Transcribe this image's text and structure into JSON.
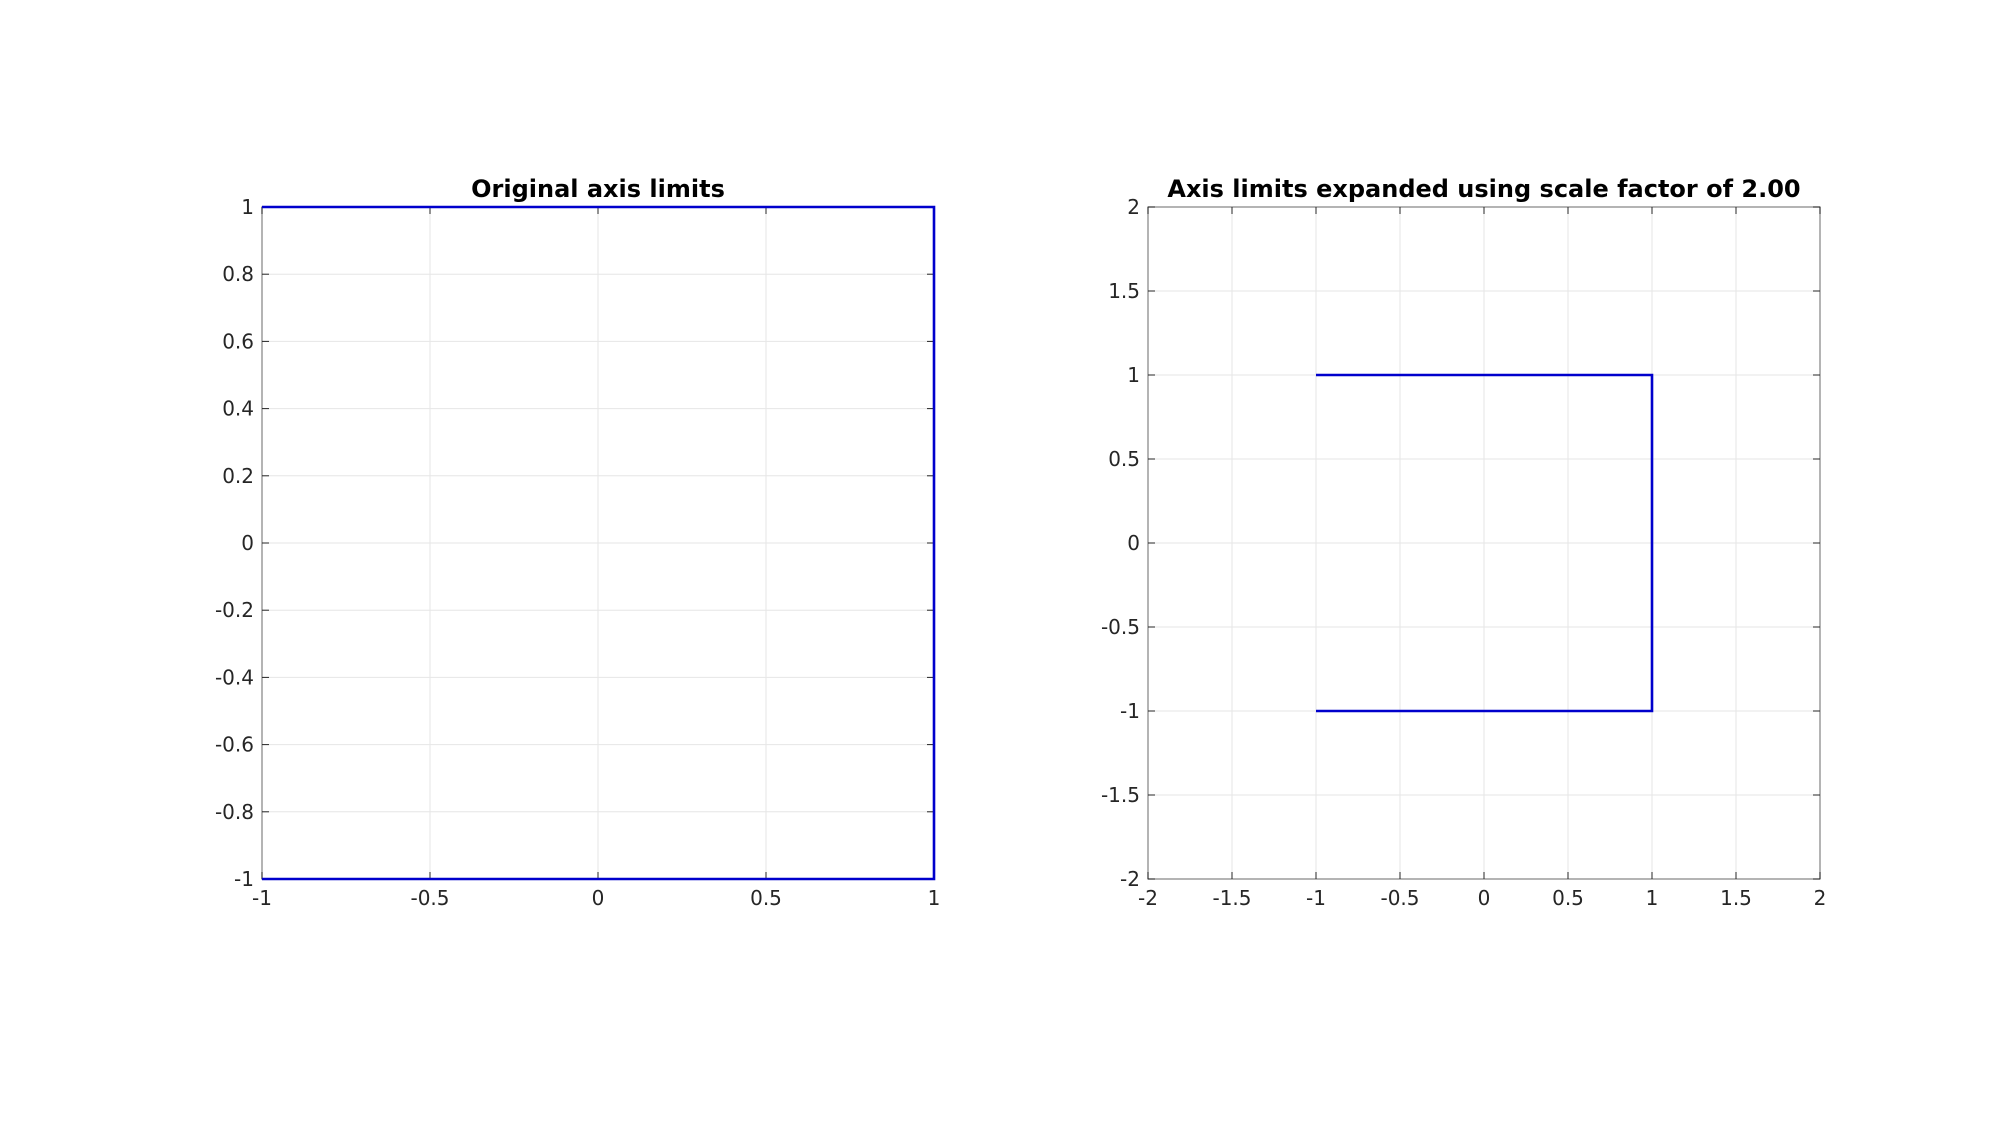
{
  "chart_data": [
    {
      "type": "line",
      "title": "Original axis limits",
      "xlabel": "",
      "ylabel": "",
      "xlim": [
        -1,
        1
      ],
      "ylim": [
        -1,
        1
      ],
      "xticks": [
        -1,
        -0.5,
        0,
        0.5,
        1
      ],
      "xtick_labels": [
        "-1",
        "-0.5",
        "0",
        "0.5",
        "1"
      ],
      "yticks": [
        -1,
        -0.8,
        -0.6,
        -0.4,
        -0.2,
        0,
        0.2,
        0.4,
        0.6,
        0.8,
        1
      ],
      "ytick_labels": [
        "-1",
        "-0.8",
        "-0.6",
        "-0.4",
        "-0.2",
        "0",
        "0.2",
        "0.4",
        "0.6",
        "0.8",
        "1"
      ],
      "grid": true,
      "series": [
        {
          "color": "#0000cc",
          "x": [
            -1,
            1,
            1,
            -1
          ],
          "y": [
            1,
            1,
            -1,
            -1
          ]
        }
      ]
    },
    {
      "type": "line",
      "title": "Axis limits expanded using scale factor of 2.00",
      "xlabel": "",
      "ylabel": "",
      "xlim": [
        -2,
        2
      ],
      "ylim": [
        -2,
        2
      ],
      "xticks": [
        -2,
        -1.5,
        -1,
        -0.5,
        0,
        0.5,
        1,
        1.5,
        2
      ],
      "xtick_labels": [
        "-2",
        "-1.5",
        "-1",
        "-0.5",
        "0",
        "0.5",
        "1",
        "1.5",
        "2"
      ],
      "yticks": [
        -2,
        -1.5,
        -1,
        -0.5,
        0,
        0.5,
        1,
        1.5,
        2
      ],
      "ytick_labels": [
        "-2",
        "-1.5",
        "-1",
        "-0.5",
        "0",
        "0.5",
        "1",
        "1.5",
        "2"
      ],
      "grid": true,
      "series": [
        {
          "color": "#0000cc",
          "x": [
            -1,
            1,
            1,
            -1
          ],
          "y": [
            1,
            1,
            -1,
            -1
          ]
        }
      ]
    }
  ]
}
